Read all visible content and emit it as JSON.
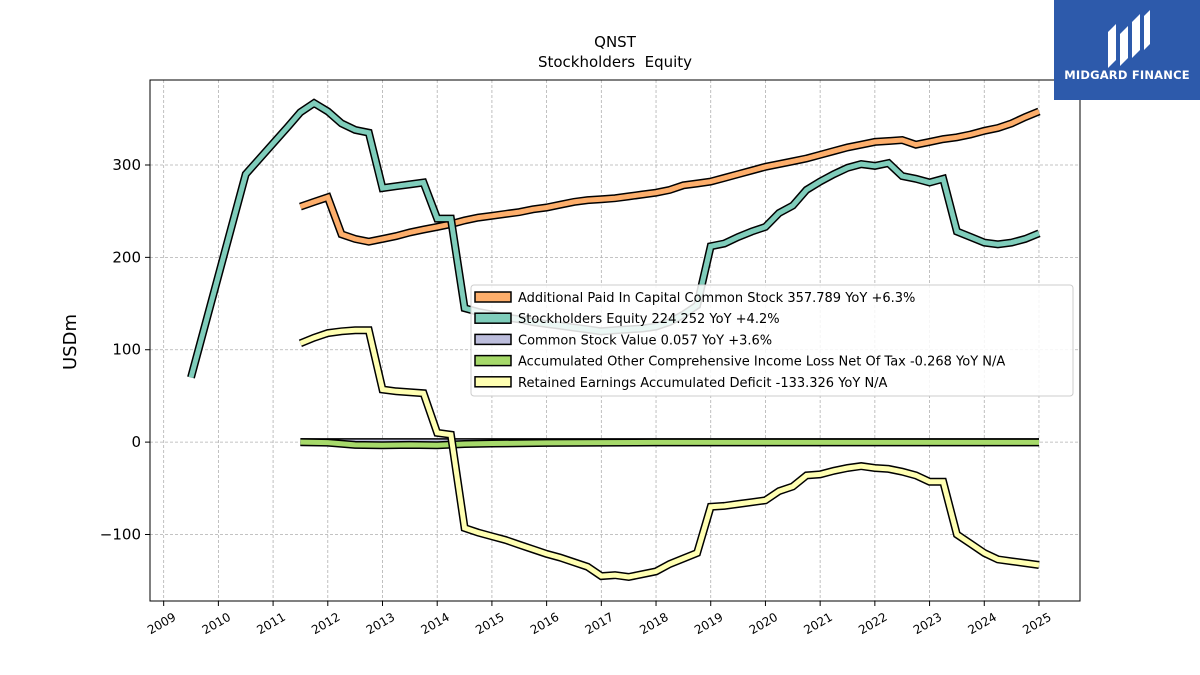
{
  "chart_data": {
    "type": "line",
    "title": "QNST",
    "subtitle": "Stockholders  Equity",
    "ylabel": "USDm",
    "xlabel": "",
    "xlim": [
      2008.75,
      2025.75
    ],
    "ylim": [
      -172,
      392
    ],
    "x_ticks": [
      "2009",
      "2010",
      "2011",
      "2012",
      "2013",
      "2014",
      "2015",
      "2016",
      "2017",
      "2018",
      "2019",
      "2020",
      "2021",
      "2022",
      "2023",
      "2024",
      "2025"
    ],
    "y_ticks": [
      -100,
      0,
      100,
      200,
      300
    ],
    "y_tick_labels": [
      "−100",
      "0",
      "100",
      "200",
      "300"
    ],
    "grid": true,
    "legend_position": "center-right",
    "series": [
      {
        "name": "Additional Paid In Capital Common Stock  357.789 YoY +6.3%",
        "color": "#fdae6b",
        "x": [
          2011.5,
          2011.75,
          2012.0,
          2012.25,
          2012.5,
          2012.75,
          2013.0,
          2013.25,
          2013.5,
          2013.75,
          2014.0,
          2014.25,
          2014.5,
          2014.75,
          2015.0,
          2015.25,
          2015.5,
          2015.75,
          2016.0,
          2016.25,
          2016.5,
          2016.75,
          2017.0,
          2017.25,
          2017.5,
          2017.75,
          2018.0,
          2018.25,
          2018.5,
          2018.75,
          2019.0,
          2019.25,
          2019.5,
          2019.75,
          2020.0,
          2020.25,
          2020.5,
          2020.75,
          2021.0,
          2021.25,
          2021.5,
          2021.75,
          2022.0,
          2022.25,
          2022.5,
          2022.75,
          2023.0,
          2023.25,
          2023.5,
          2023.75,
          2024.0,
          2024.25,
          2024.5,
          2024.75,
          2025.0
        ],
        "y": [
          255,
          260,
          265,
          225,
          220,
          217,
          220,
          223,
          227,
          230,
          233,
          236,
          240,
          243,
          245,
          247,
          249,
          252,
          254,
          257,
          260,
          262,
          263,
          264,
          266,
          268,
          270,
          273,
          278,
          280,
          282,
          286,
          290,
          294,
          298,
          301,
          304,
          307,
          311,
          315,
          319,
          322,
          325,
          326,
          327,
          322,
          325,
          328,
          330,
          333,
          337,
          340,
          345,
          352,
          358
        ]
      },
      {
        "name": "Stockholders Equity  224.252 YoY +4.2%",
        "color": "#7fcdbb",
        "x": [
          2009.5,
          2010.5,
          2011.25,
          2011.5,
          2011.75,
          2012.0,
          2012.25,
          2012.5,
          2012.75,
          2013.0,
          2013.25,
          2013.5,
          2013.75,
          2014.0,
          2014.25,
          2014.5,
          2014.75,
          2015.0,
          2015.25,
          2015.5,
          2015.75,
          2016.0,
          2016.25,
          2016.5,
          2016.75,
          2017.0,
          2017.25,
          2017.5,
          2017.75,
          2018.0,
          2018.25,
          2018.5,
          2018.75,
          2019.0,
          2019.25,
          2019.5,
          2019.75,
          2020.0,
          2020.25,
          2020.5,
          2020.75,
          2021.0,
          2021.25,
          2021.5,
          2021.75,
          2022.0,
          2022.25,
          2022.5,
          2022.75,
          2023.0,
          2023.25,
          2023.5,
          2023.75,
          2024.0,
          2024.25,
          2024.5,
          2024.75,
          2025.0
        ],
        "y": [
          70,
          290,
          340,
          357,
          367,
          358,
          345,
          338,
          335,
          275,
          277,
          279,
          281,
          242,
          242,
          145,
          141,
          138,
          135,
          133,
          130,
          128,
          126,
          124,
          122,
          120,
          121,
          122,
          123,
          125,
          130,
          138,
          148,
          212,
          215,
          222,
          228,
          233,
          248,
          256,
          273,
          282,
          290,
          297,
          301,
          299,
          302,
          288,
          285,
          281,
          285,
          228,
          222,
          216,
          214,
          216,
          220,
          226
        ]
      },
      {
        "name": "Common Stock Value  0.057 YoY +3.6%",
        "color": "#bcbddc",
        "x": [
          2011.5,
          2025.0
        ],
        "y": [
          0.05,
          0.057
        ]
      },
      {
        "name": "Accumulated Other Comprehensive Income Loss Net Of Tax  -0.268 YoY N/A",
        "color": "#a6d96a",
        "x": [
          2011.5,
          2012.0,
          2012.5,
          2013.0,
          2013.5,
          2014.0,
          2014.5,
          2015.0,
          2016.0,
          2017.0,
          2018.0,
          2019.0,
          2020.0,
          2021.0,
          2022.0,
          2023.0,
          2024.0,
          2025.0
        ],
        "y": [
          0,
          -0.5,
          -3,
          -3.5,
          -3,
          -3.5,
          -2,
          -1.5,
          -0.8,
          -0.5,
          -0.3,
          -0.3,
          -0.3,
          -0.3,
          -0.3,
          -0.3,
          -0.3,
          -0.3
        ]
      },
      {
        "name": "Retained Earnings Accumulated Deficit  -133.326 YoY N/A",
        "color": "#ffffb2",
        "x": [
          2011.5,
          2011.75,
          2012.0,
          2012.25,
          2012.5,
          2012.75,
          2013.0,
          2013.25,
          2013.5,
          2013.75,
          2014.0,
          2014.25,
          2014.5,
          2014.75,
          2015.0,
          2015.25,
          2015.5,
          2015.75,
          2016.0,
          2016.25,
          2016.5,
          2016.75,
          2017.0,
          2017.25,
          2017.5,
          2017.75,
          2018.0,
          2018.25,
          2018.5,
          2018.75,
          2019.0,
          2019.25,
          2019.5,
          2019.75,
          2020.0,
          2020.25,
          2020.5,
          2020.75,
          2021.0,
          2021.25,
          2021.5,
          2021.75,
          2022.0,
          2022.25,
          2022.5,
          2022.75,
          2023.0,
          2023.25,
          2023.5,
          2023.75,
          2024.0,
          2024.25,
          2024.5,
          2024.75,
          2025.0
        ],
        "y": [
          107,
          113,
          118,
          120,
          121,
          121,
          57,
          55,
          54,
          53,
          10,
          8,
          -93,
          -98,
          -102,
          -106,
          -111,
          -116,
          -121,
          -125,
          -130,
          -135,
          -145,
          -144,
          -146,
          -143,
          -140,
          -132,
          -126,
          -120,
          -70,
          -69,
          -67,
          -65,
          -63,
          -53,
          -48,
          -36,
          -35,
          -31,
          -28,
          -26,
          -28,
          -29,
          -32,
          -36,
          -43,
          -43,
          -100,
          -110,
          -120,
          -127,
          -129,
          -131,
          -133
        ]
      }
    ]
  },
  "logo": {
    "text": "MIDGARD FINANCE",
    "background": "#2d5aab"
  }
}
